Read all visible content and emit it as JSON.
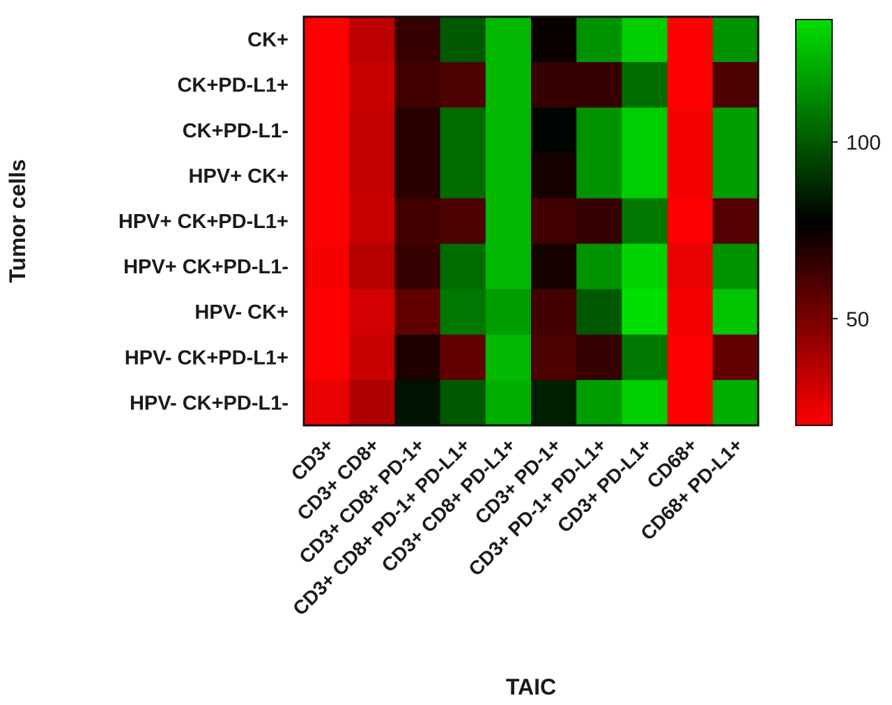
{
  "chart_data": {
    "type": "heatmap",
    "title": "",
    "xlabel": "TAIC",
    "ylabel": "Tumor cells",
    "x_categories": [
      "CD3+",
      "CD3+ CD8+",
      "CD3+ CD8+ PD-1+",
      "CD3+ CD8+ PD-1+ PD-L1+",
      "CD3+ CD8+ PD-L1+",
      "CD3+ PD-1+",
      "CD3+ PD-1+ PD-L1+",
      "CD3+ PD-L1+",
      "CD68+",
      "CD68+ PD-L1+"
    ],
    "y_categories": [
      "CK+",
      "CK+PD-L1+",
      "CK+PD-L1-",
      "HPV+ CK+",
      "HPV+ CK+PD-L1+",
      "HPV+ CK+PD-L1-",
      "HPV- CK+",
      "HPV- CK+PD-L1+",
      "HPV- CK+PD-L1-"
    ],
    "values": [
      [
        20,
        35,
        65,
        100,
        125,
        75,
        115,
        130,
        20,
        115
      ],
      [
        18,
        32,
        62,
        60,
        125,
        65,
        65,
        105,
        18,
        60
      ],
      [
        20,
        33,
        68,
        105,
        125,
        78,
        115,
        130,
        22,
        118
      ],
      [
        20,
        33,
        68,
        105,
        125,
        72,
        115,
        130,
        22,
        118
      ],
      [
        18,
        32,
        62,
        60,
        125,
        62,
        65,
        108,
        18,
        58
      ],
      [
        22,
        36,
        65,
        105,
        125,
        72,
        115,
        132,
        25,
        115
      ],
      [
        20,
        30,
        55,
        108,
        118,
        62,
        100,
        138,
        22,
        128
      ],
      [
        20,
        32,
        70,
        55,
        125,
        60,
        65,
        108,
        18,
        55
      ],
      [
        25,
        38,
        82,
        100,
        122,
        85,
        118,
        130,
        20,
        122
      ]
    ],
    "color_scale": {
      "min": 20,
      "mid": 77,
      "max": 135,
      "min_color": "#ff0000",
      "mid_color": "#000000",
      "max_color": "#00e000",
      "ticks": [
        50,
        100
      ],
      "tick_labels": [
        "50",
        "100"
      ]
    },
    "grid": false,
    "legend": "right"
  }
}
